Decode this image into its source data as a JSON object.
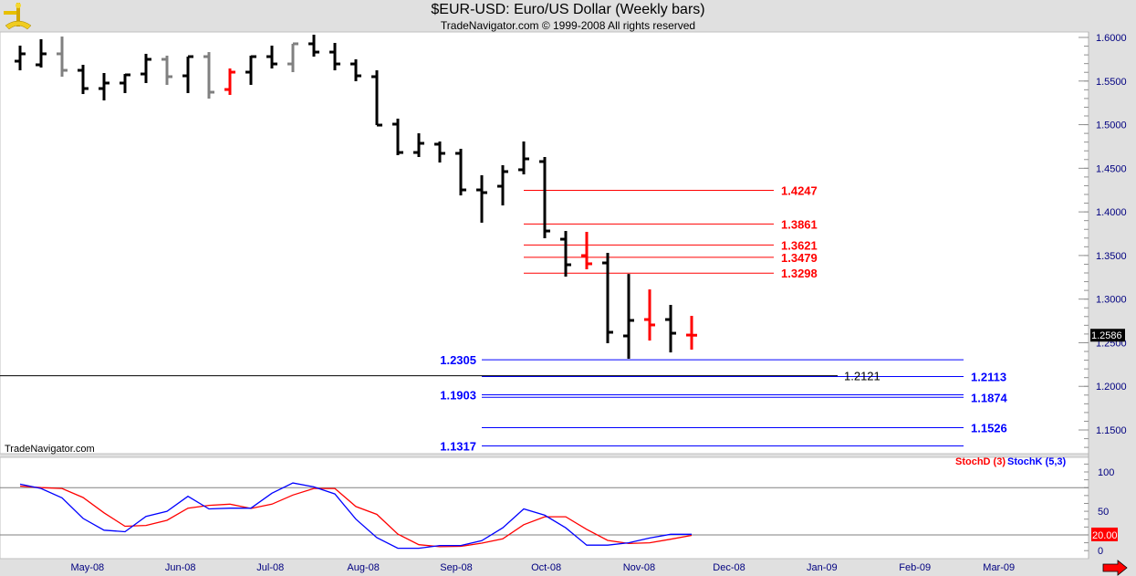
{
  "header": {
    "title": "$EUR-USD:  Euro/US Dollar  (Weekly bars)",
    "subtitle": "TradeNavigator.com © 1999-2008 All rights reserved",
    "logo_icon": "sextant-icon"
  },
  "watermark": "TradeNavigator.com",
  "colors": {
    "up_bar": "#000000",
    "neutral_bar": "#808080",
    "highlight_bar": "#ff0000",
    "resistance": "#ff0000",
    "support": "#0000ff",
    "stochD": "#ff0000",
    "stochK": "#0000ff",
    "axis_text": "#000080"
  },
  "chart_data": [
    {
      "type": "ohlc",
      "title": "$EUR-USD:  Euro/US Dollar  (Weekly bars)",
      "ylim": [
        1.13,
        1.605
      ],
      "y_ticks": [
        "1.6000",
        "1.5500",
        "1.5000",
        "1.4500",
        "1.4000",
        "1.3500",
        "1.3000",
        "1.2500",
        "1.2000",
        "1.1500"
      ],
      "x_ticks": [
        {
          "label": "May-08",
          "date": "2008-05-01"
        },
        {
          "label": "Jun-08",
          "date": "2008-06-01"
        },
        {
          "label": "Jul-08",
          "date": "2008-07-01"
        },
        {
          "label": "Aug-08",
          "date": "2008-08-01"
        },
        {
          "label": "Sep-08",
          "date": "2008-09-01"
        },
        {
          "label": "Oct-08",
          "date": "2008-10-01"
        },
        {
          "label": "Nov-08",
          "date": "2008-11-01"
        },
        {
          "label": "Dec-08",
          "date": "2008-12-01"
        },
        {
          "label": "Jan-09",
          "date": "2009-01-01"
        },
        {
          "label": "Feb-09",
          "date": "2009-02-01"
        },
        {
          "label": "Mar-09",
          "date": "2009-03-01"
        }
      ],
      "bars": [
        {
          "date": "2008-04-07",
          "o": 1.5728,
          "h": 1.5906,
          "l": 1.5623,
          "c": 1.5812,
          "color": "black"
        },
        {
          "date": "2008-04-14",
          "o": 1.5686,
          "h": 1.5979,
          "l": 1.5655,
          "c": 1.5812,
          "color": "black"
        },
        {
          "date": "2008-04-21",
          "o": 1.5812,
          "h": 1.601,
          "l": 1.555,
          "c": 1.5623,
          "color": "gray"
        },
        {
          "date": "2008-04-28",
          "o": 1.5623,
          "h": 1.5686,
          "l": 1.5351,
          "c": 1.5414,
          "color": "black"
        },
        {
          "date": "2008-05-05",
          "o": 1.5414,
          "h": 1.5592,
          "l": 1.5278,
          "c": 1.5477,
          "color": "black"
        },
        {
          "date": "2008-05-12",
          "o": 1.5477,
          "h": 1.5581,
          "l": 1.5362,
          "c": 1.5571,
          "color": "black"
        },
        {
          "date": "2008-05-19",
          "o": 1.5581,
          "h": 1.5812,
          "l": 1.5477,
          "c": 1.5749,
          "color": "black"
        },
        {
          "date": "2008-05-26",
          "o": 1.5749,
          "h": 1.5791,
          "l": 1.5456,
          "c": 1.555,
          "color": "gray"
        },
        {
          "date": "2008-06-02",
          "o": 1.556,
          "h": 1.578,
          "l": 1.5362,
          "c": 1.578,
          "color": "black"
        },
        {
          "date": "2008-06-09",
          "o": 1.578,
          "h": 1.5832,
          "l": 1.5299,
          "c": 1.5372,
          "color": "gray"
        },
        {
          "date": "2008-06-16",
          "o": 1.5403,
          "h": 1.5644,
          "l": 1.5341,
          "c": 1.5602,
          "color": "red"
        },
        {
          "date": "2008-06-23",
          "o": 1.5602,
          "h": 1.5791,
          "l": 1.5456,
          "c": 1.578,
          "color": "black"
        },
        {
          "date": "2008-06-30",
          "o": 1.578,
          "h": 1.5906,
          "l": 1.5644,
          "c": 1.5696,
          "color": "black"
        },
        {
          "date": "2008-07-07",
          "o": 1.5696,
          "h": 1.5927,
          "l": 1.5602,
          "c": 1.5927,
          "color": "gray"
        },
        {
          "date": "2008-07-14",
          "o": 1.5927,
          "h": 1.6031,
          "l": 1.578,
          "c": 1.5832,
          "color": "black"
        },
        {
          "date": "2008-07-21",
          "o": 1.5832,
          "h": 1.5937,
          "l": 1.5623,
          "c": 1.5696,
          "color": "black"
        },
        {
          "date": "2008-07-28",
          "o": 1.5696,
          "h": 1.5749,
          "l": 1.5498,
          "c": 1.556,
          "color": "black"
        },
        {
          "date": "2008-08-04",
          "o": 1.555,
          "h": 1.5623,
          "l": 1.4995,
          "c": 1.4995,
          "color": "black"
        },
        {
          "date": "2008-08-11",
          "o": 1.5006,
          "h": 1.5069,
          "l": 1.465,
          "c": 1.4681,
          "color": "black"
        },
        {
          "date": "2008-08-18",
          "o": 1.4681,
          "h": 1.4901,
          "l": 1.4629,
          "c": 1.4786,
          "color": "black"
        },
        {
          "date": "2008-08-25",
          "o": 1.4776,
          "h": 1.4807,
          "l": 1.4566,
          "c": 1.4671,
          "color": "black"
        },
        {
          "date": "2008-09-01",
          "o": 1.4671,
          "h": 1.4723,
          "l": 1.4189,
          "c": 1.4252,
          "color": "black"
        },
        {
          "date": "2008-09-08",
          "o": 1.4252,
          "h": 1.442,
          "l": 1.3876,
          "c": 1.4221,
          "color": "black"
        },
        {
          "date": "2008-09-15",
          "o": 1.4294,
          "h": 1.4535,
          "l": 1.4074,
          "c": 1.4462,
          "color": "black"
        },
        {
          "date": "2008-09-22",
          "o": 1.4483,
          "h": 1.4807,
          "l": 1.443,
          "c": 1.4608,
          "color": "black"
        },
        {
          "date": "2008-09-29",
          "o": 1.4577,
          "h": 1.4629,
          "l": 1.3698,
          "c": 1.3781,
          "color": "black"
        },
        {
          "date": "2008-10-06",
          "o": 1.3687,
          "h": 1.3781,
          "l": 1.3258,
          "c": 1.3394,
          "color": "black"
        },
        {
          "date": "2008-10-13",
          "o": 1.3499,
          "h": 1.3771,
          "l": 1.3342,
          "c": 1.3405,
          "color": "red"
        },
        {
          "date": "2008-10-20",
          "o": 1.3415,
          "h": 1.353,
          "l": 1.2494,
          "c": 1.262,
          "color": "black"
        },
        {
          "date": "2008-10-27",
          "o": 1.2578,
          "h": 1.3289,
          "l": 1.2316,
          "c": 1.2756,
          "color": "black"
        },
        {
          "date": "2008-11-03",
          "o": 1.2766,
          "h": 1.3111,
          "l": 1.2525,
          "c": 1.2704,
          "color": "red"
        },
        {
          "date": "2008-11-10",
          "o": 1.2766,
          "h": 1.2934,
          "l": 1.2389,
          "c": 1.2609,
          "color": "black"
        },
        {
          "date": "2008-11-17",
          "o": 1.2588,
          "h": 1.2808,
          "l": 1.2421,
          "c": 1.2586,
          "color": "red"
        }
      ],
      "last_price": "1.2586",
      "resistance_levels": [
        "1.4247",
        "1.3861",
        "1.3621",
        "1.3479",
        "1.3298"
      ],
      "support_levels_left": [
        "1.2305",
        "1.1903",
        "1.1317"
      ],
      "support_levels_right": [
        "1.2113",
        "1.1874",
        "1.1526"
      ],
      "support_levels": [
        1.2305,
        1.2113,
        1.1903,
        1.1874,
        1.1526,
        1.1317
      ],
      "horizontal_line": {
        "value": "1.2121"
      }
    },
    {
      "type": "line",
      "ylim": [
        0,
        110
      ],
      "y_ticks": [
        "100",
        "50",
        "0"
      ],
      "reference_lines": [
        80,
        20
      ],
      "level_marker": "20.00",
      "series": [
        {
          "name": "StochD (3)",
          "color": "#ff0000",
          "values": [
            82,
            80,
            79,
            67.5,
            48,
            31,
            32,
            38.5,
            54,
            57.5,
            59,
            53.6,
            59,
            70.6,
            79,
            79,
            56,
            46,
            21,
            7.5,
            5,
            5.5,
            9.5,
            15,
            33,
            43,
            43,
            27,
            13,
            9,
            10,
            14.5,
            19.4
          ]
        },
        {
          "name": "StochK (5,3)",
          "color": "#0000ff",
          "values": [
            84.5,
            79,
            67,
            41,
            26,
            24,
            43.5,
            50,
            69,
            53,
            54,
            54,
            73,
            86,
            81,
            72,
            40,
            16.5,
            3,
            3,
            6.5,
            6.5,
            12.6,
            29,
            53,
            45,
            29,
            7,
            7,
            10,
            16,
            20.8,
            20.8
          ]
        }
      ]
    }
  ],
  "nav": {
    "scroll_right_icon": "red-arrow-right-icon"
  }
}
